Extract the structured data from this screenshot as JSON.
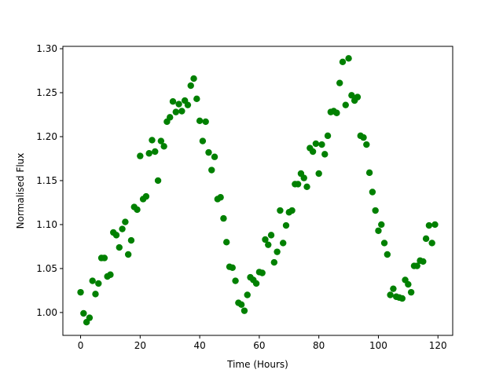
{
  "chart_data": {
    "type": "scatter",
    "xlabel": "Time (Hours)",
    "ylabel": "Normalised Flux",
    "color": "#008000",
    "x": [
      0,
      1,
      2,
      3,
      4,
      5,
      6,
      7,
      8,
      9,
      10,
      11,
      12,
      13,
      14,
      15,
      16,
      17,
      18,
      19,
      20,
      21,
      22,
      23,
      24,
      25,
      26,
      27,
      28,
      29,
      30,
      31,
      32,
      33,
      34,
      35,
      36,
      37,
      38,
      39,
      40,
      41,
      42,
      43,
      44,
      45,
      46,
      47,
      48,
      49,
      50,
      51,
      52,
      53,
      54,
      55,
      56,
      57,
      58,
      59,
      60,
      61,
      62,
      63,
      64,
      65,
      66,
      67,
      68,
      69,
      70,
      71,
      72,
      73,
      74,
      75,
      76,
      77,
      78,
      79,
      80,
      81,
      82,
      83,
      84,
      85,
      86,
      87,
      88,
      89,
      90,
      91,
      92,
      93,
      94,
      95,
      96,
      97,
      98,
      99,
      100,
      101,
      102,
      103,
      104,
      105,
      106,
      107,
      108,
      109,
      110,
      111,
      112,
      113,
      114,
      115,
      116,
      117,
      118,
      119
    ],
    "values": [
      1.023,
      0.999,
      0.989,
      0.994,
      1.036,
      1.021,
      1.033,
      1.062,
      1.062,
      1.041,
      1.043,
      1.091,
      1.088,
      1.074,
      1.095,
      1.103,
      1.066,
      1.082,
      1.12,
      1.117,
      1.178,
      1.129,
      1.132,
      1.181,
      1.196,
      1.183,
      1.15,
      1.195,
      1.189,
      1.217,
      1.222,
      1.24,
      1.228,
      1.237,
      1.229,
      1.241,
      1.236,
      1.258,
      1.266,
      1.243,
      1.218,
      1.195,
      1.217,
      1.182,
      1.162,
      1.177,
      1.129,
      1.131,
      1.107,
      1.08,
      1.052,
      1.051,
      1.036,
      1.011,
      1.009,
      1.002,
      1.02,
      1.04,
      1.037,
      1.033,
      1.046,
      1.045,
      1.083,
      1.077,
      1.088,
      1.057,
      1.069,
      1.116,
      1.079,
      1.099,
      1.114,
      1.116,
      1.146,
      1.146,
      1.158,
      1.153,
      1.143,
      1.187,
      1.183,
      1.192,
      1.158,
      1.191,
      1.18,
      1.201,
      1.228,
      1.229,
      1.227,
      1.261,
      1.285,
      1.236,
      1.289,
      1.247,
      1.241,
      1.245,
      1.201,
      1.199,
      1.191,
      1.159,
      1.137,
      1.116,
      1.093,
      1.1,
      1.079,
      1.066,
      1.02,
      1.027,
      1.018,
      1.017,
      1.016,
      1.037,
      1.032,
      1.023,
      1.053,
      1.053,
      1.059,
      1.058,
      1.084,
      1.099,
      1.079,
      1.1
    ],
    "xlim": [
      -5.95,
      124.95
    ],
    "xticks": [
      0,
      20,
      40,
      60,
      80,
      100,
      120
    ],
    "ylim": [
      0.974,
      1.3027
    ],
    "yticks": [
      {
        "value": 1.0,
        "label": "1.00"
      },
      1.05,
      {
        "value": 1.1,
        "label": "1.10"
      },
      1.15,
      {
        "value": 1.2,
        "label": "1.20"
      },
      1.25,
      {
        "value": 1.3,
        "label": "1.30"
      }
    ]
  }
}
